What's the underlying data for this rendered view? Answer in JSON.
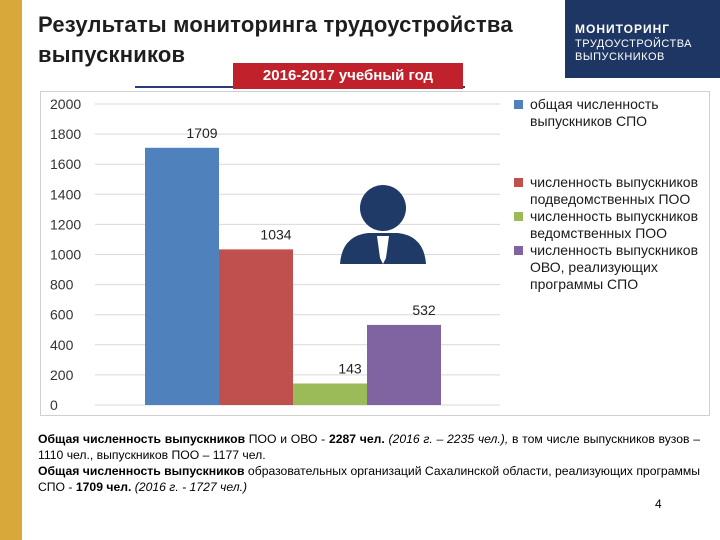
{
  "slide": {
    "title": "Результаты мониторинга трудоустройства выпускников",
    "year_badge": "2016-2017 учебный год",
    "brand": [
      "МОНИТОРИНГ",
      "ТРУДОУСТРОЙСТВА",
      "ВЫПУСКНИКОВ"
    ],
    "page_number": "4",
    "colors": {
      "accent_strip": "#d8a93a",
      "badge": "#c0212b",
      "brand_bg": "#1e3663"
    }
  },
  "footnote": {
    "p1_bold1": "Общая численность выпускников",
    "p1_text1": " ПОО и ОВО - ",
    "p1_bold2": "2287 чел.",
    "p1_italic": " (2016 г. – 2235 чел.),",
    "p1_text2": " в том числе выпускников вузов – 1110 чел., выпускников ПОО – 1177 чел.",
    "p2_bold1": "Общая численность выпускников",
    "p2_text1": " образовательных организаций Сахалинской области, реализующих программы СПО - ",
    "p2_bold2": "1709 чел.",
    "p2_italic": " (2016 г. - 1727 чел.)"
  },
  "chart_data": {
    "type": "bar",
    "ylim": [
      0,
      2000
    ],
    "yticks": [
      0,
      200,
      400,
      600,
      800,
      1000,
      1200,
      1400,
      1600,
      1800,
      2000
    ],
    "grid": true,
    "legend_position": "right",
    "series": [
      {
        "name": "общая численность выпускников СПО",
        "value": 1709,
        "label": "1709",
        "color": "#4f81bd"
      },
      {
        "name": "численность выпускников подведомственных ПОО",
        "value": 1034,
        "label": "1034",
        "color": "#c0504d"
      },
      {
        "name": "численность выпускников ведомственных ПОО",
        "value": 143,
        "label": "143",
        "color": "#9bbb59"
      },
      {
        "name": "численность выпускников ОВО, реализующих программы СПО",
        "value": 532,
        "label": "532",
        "color": "#8064a2"
      }
    ],
    "icon": "person-icon"
  }
}
